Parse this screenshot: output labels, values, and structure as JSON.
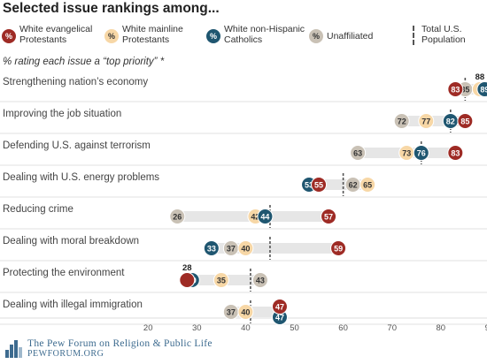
{
  "title": "Selected issue rankings among...",
  "subtitle": "% rating each issue a “top priority” *",
  "legend": {
    "symbol": "%",
    "evangelical": "White evangelical Protestants",
    "mainline": "White mainline Protestants",
    "catholic": "White non-Hispanic Catholics",
    "unaffiliated": "Unaffiliated",
    "total": "Total U.S. Population"
  },
  "colors": {
    "evangelical": "#9e2b25",
    "mainline": "#f7d7a6",
    "catholic": "#1f5670",
    "unaffiliated": "#c9c1b5",
    "range_band": "#e6e6e6",
    "total_line": "#555555"
  },
  "footer": {
    "org": "The Pew Forum on Religion & Public Life",
    "url": "PEWFORUM.ORG"
  },
  "chart_data": {
    "type": "scatter",
    "xlim": [
      10,
      100
    ],
    "xticks": [
      20,
      30,
      40,
      50,
      60,
      70,
      80,
      90
    ],
    "categories": [
      "Strengthening nation’s economy",
      "Improving the job situation",
      "Defending U.S. against terrorism",
      "Dealing with U.S. energy problems",
      "Reducing crime",
      "Dealing with moral breakdown",
      "Protecting the environment",
      "Dealing with illegal immigration"
    ],
    "series": [
      {
        "name": "White evangelical Protestants",
        "key": "evangelical",
        "values": [
          83,
          85,
          83,
          55,
          57,
          59,
          28,
          47
        ]
      },
      {
        "name": "White mainline Protestants",
        "key": "mainline",
        "values": [
          88,
          77,
          73,
          65,
          42,
          40,
          35,
          40
        ]
      },
      {
        "name": "White non-Hispanic Catholics",
        "key": "catholic",
        "values": [
          89,
          82,
          76,
          53,
          44,
          33,
          29,
          47
        ]
      },
      {
        "name": "Unaffiliated",
        "key": "unaffiliated",
        "values": [
          85,
          72,
          63,
          62,
          26,
          37,
          43,
          37
        ]
      }
    ],
    "total_population": [
      85,
      82,
      76,
      60,
      45,
      45,
      41,
      41
    ]
  }
}
